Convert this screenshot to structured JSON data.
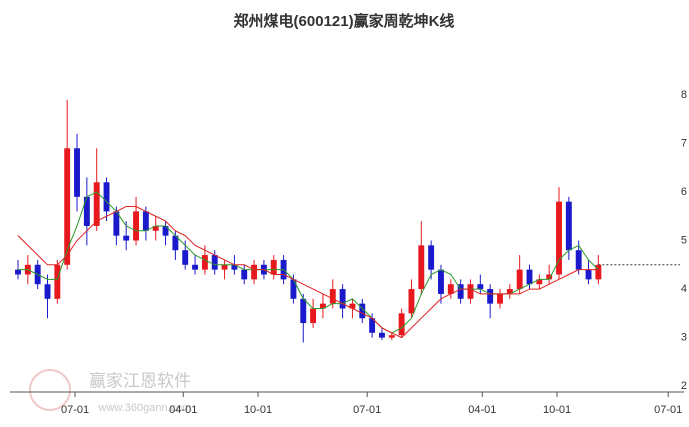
{
  "chart_data": {
    "type": "candlestick",
    "title": "郑州煤电(600121)赢家周乾坤K线",
    "watermark": [
      "赢家江恩软件",
      "www.360gann.com"
    ],
    "ohlc": [
      [
        4.4,
        4.6,
        4.2,
        4.3
      ],
      [
        4.3,
        4.7,
        4.1,
        4.5
      ],
      [
        4.5,
        4.6,
        4.0,
        4.1
      ],
      [
        4.1,
        4.3,
        3.4,
        3.8
      ],
      [
        3.8,
        4.6,
        3.7,
        4.5
      ],
      [
        4.5,
        7.9,
        4.4,
        6.9
      ],
      [
        6.9,
        7.2,
        5.6,
        5.9
      ],
      [
        5.9,
        6.3,
        4.9,
        5.3
      ],
      [
        5.3,
        6.9,
        5.2,
        6.2
      ],
      [
        6.2,
        6.3,
        5.4,
        5.6
      ],
      [
        5.6,
        5.7,
        4.9,
        5.1
      ],
      [
        5.1,
        5.4,
        4.8,
        5.0
      ],
      [
        5.0,
        5.9,
        4.9,
        5.6
      ],
      [
        5.6,
        5.7,
        5.0,
        5.2
      ],
      [
        5.2,
        5.5,
        5.0,
        5.3
      ],
      [
        5.3,
        5.4,
        4.9,
        5.1
      ],
      [
        5.1,
        5.2,
        4.6,
        4.8
      ],
      [
        4.8,
        5.0,
        4.4,
        4.5
      ],
      [
        4.5,
        4.7,
        4.3,
        4.4
      ],
      [
        4.4,
        4.9,
        4.3,
        4.7
      ],
      [
        4.7,
        4.8,
        4.3,
        4.4
      ],
      [
        4.4,
        4.6,
        4.2,
        4.5
      ],
      [
        4.5,
        4.7,
        4.3,
        4.4
      ],
      [
        4.4,
        4.5,
        4.1,
        4.2
      ],
      [
        4.2,
        4.6,
        4.1,
        4.5
      ],
      [
        4.5,
        4.6,
        4.2,
        4.3
      ],
      [
        4.3,
        4.7,
        4.2,
        4.6
      ],
      [
        4.6,
        4.7,
        4.1,
        4.2
      ],
      [
        4.2,
        4.3,
        3.7,
        3.8
      ],
      [
        3.8,
        3.9,
        2.9,
        3.3
      ],
      [
        3.3,
        3.8,
        3.2,
        3.6
      ],
      [
        3.6,
        3.9,
        3.4,
        3.7
      ],
      [
        3.7,
        4.2,
        3.6,
        4.0
      ],
      [
        4.0,
        4.1,
        3.4,
        3.6
      ],
      [
        3.6,
        3.8,
        3.4,
        3.7
      ],
      [
        3.7,
        3.8,
        3.3,
        3.4
      ],
      [
        3.4,
        3.5,
        3.0,
        3.1
      ],
      [
        3.1,
        3.2,
        2.95,
        3.0
      ],
      [
        3.0,
        3.1,
        2.95,
        3.05
      ],
      [
        3.05,
        3.6,
        3.0,
        3.5
      ],
      [
        3.5,
        4.2,
        3.4,
        4.0
      ],
      [
        4.0,
        5.4,
        3.9,
        4.9
      ],
      [
        4.9,
        5.0,
        4.2,
        4.4
      ],
      [
        4.4,
        4.5,
        3.7,
        3.9
      ],
      [
        3.9,
        4.2,
        3.8,
        4.1
      ],
      [
        4.1,
        4.2,
        3.7,
        3.8
      ],
      [
        3.8,
        4.2,
        3.7,
        4.1
      ],
      [
        4.1,
        4.3,
        3.9,
        4.0
      ],
      [
        4.0,
        4.1,
        3.4,
        3.7
      ],
      [
        3.7,
        4.0,
        3.6,
        3.9
      ],
      [
        3.9,
        4.1,
        3.8,
        4.0
      ],
      [
        4.0,
        4.7,
        3.9,
        4.4
      ],
      [
        4.4,
        4.5,
        4.0,
        4.1
      ],
      [
        4.1,
        4.3,
        4.0,
        4.2
      ],
      [
        4.2,
        4.5,
        4.1,
        4.3
      ],
      [
        4.3,
        6.1,
        4.2,
        5.8
      ],
      [
        5.8,
        5.9,
        4.6,
        4.8
      ],
      [
        4.8,
        5.0,
        4.3,
        4.4
      ],
      [
        4.4,
        4.6,
        4.1,
        4.2
      ],
      [
        4.2,
        4.7,
        4.1,
        4.5
      ]
    ],
    "up_color": "#e8191e",
    "down_color": "#1a1acc",
    "series": [
      {
        "color": "#2a9a2a",
        "values": [
          4.4,
          4.4,
          4.3,
          4.2,
          4.2,
          4.8,
          5.3,
          5.9,
          6.0,
          5.8,
          5.6,
          5.3,
          5.2,
          5.2,
          5.3,
          5.3,
          5.1,
          4.9,
          4.7,
          4.6,
          4.5,
          4.5,
          4.5,
          4.4,
          4.4,
          4.4,
          4.4,
          4.4,
          4.2,
          3.8,
          3.6,
          3.6,
          3.7,
          3.7,
          3.8,
          3.6,
          3.4,
          3.2,
          3.1,
          3.2,
          3.4,
          3.9,
          4.3,
          4.4,
          4.3,
          4.0,
          4.0,
          4.0,
          3.9,
          3.9,
          3.9,
          4.0,
          4.1,
          4.2,
          4.2,
          4.6,
          4.8,
          4.9,
          4.6,
          4.4
        ]
      },
      {
        "color": "#e02020",
        "values": [
          5.1,
          4.9,
          4.7,
          4.5,
          4.5,
          4.7,
          5.0,
          5.2,
          5.4,
          5.5,
          5.6,
          5.7,
          5.7,
          5.6,
          5.5,
          5.4,
          5.2,
          5.1,
          4.9,
          4.8,
          4.7,
          4.6,
          4.5,
          4.5,
          4.4,
          4.4,
          4.3,
          4.3,
          4.2,
          4.1,
          4.0,
          3.9,
          3.8,
          3.7,
          3.6,
          3.5,
          3.4,
          3.2,
          3.1,
          3.0,
          3.2,
          3.4,
          3.6,
          3.8,
          3.9,
          4.0,
          4.0,
          3.9,
          3.9,
          3.9,
          3.9,
          3.9,
          4.0,
          4.0,
          4.1,
          4.2,
          4.3,
          4.4,
          4.4,
          4.4
        ]
      }
    ],
    "dashed_level": 4.5,
    "xlim": [
      0,
      67.3
    ],
    "xticks": [
      {
        "value": 5.8,
        "label": "07-01"
      },
      {
        "value": 16.8,
        "label": "04-01"
      },
      {
        "value": 24.4,
        "label": "10-01"
      },
      {
        "value": 35.5,
        "label": "07-01"
      },
      {
        "value": 47.2,
        "label": "04-01"
      },
      {
        "value": 54.8,
        "label": "10-01"
      },
      {
        "value": 66.1,
        "label": "07-01"
      }
    ],
    "ylim": [
      1.88,
      9.13
    ],
    "yticks": [
      2,
      3,
      4,
      5,
      6,
      7,
      8
    ]
  }
}
